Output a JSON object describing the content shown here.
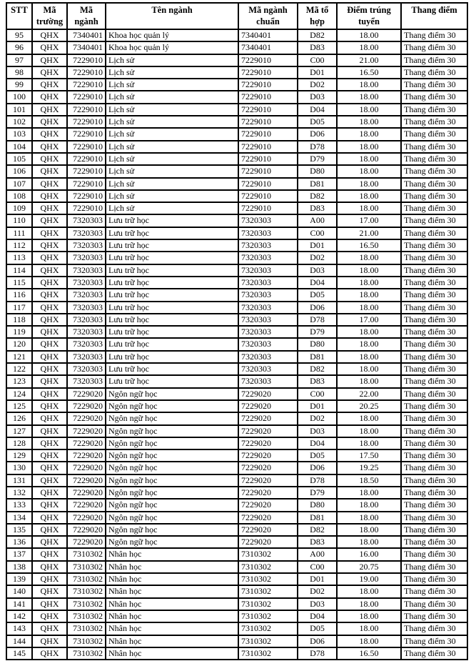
{
  "table": {
    "headers": [
      "STT",
      "Mã\ntrường",
      "Mã ngành",
      "Tên ngành",
      "Mã ngành\nchuẩn",
      "Mã tổ\nhợp",
      "Điểm trúng\ntuyển",
      "Thang điểm"
    ],
    "col_names": [
      "cell-stt",
      "cell-ma-truong",
      "cell-ma-nganh",
      "cell-ten-nganh",
      "cell-ma-nganh-chuan",
      "cell-ma-to-hop",
      "cell-diem-trung-tuyen",
      "cell-thang-diem"
    ],
    "header_names": [
      "header-stt",
      "header-ma-truong",
      "header-ma-nganh",
      "header-ten-nganh",
      "header-ma-nganh-chuan",
      "header-ma-to-hop",
      "header-diem-trung-tuyen",
      "header-thang-diem"
    ],
    "rows": [
      [
        "95",
        "QHX",
        "7340401",
        "Khoa học quản lý",
        "7340401",
        "D82",
        "18.00",
        "Thang điểm 30"
      ],
      [
        "96",
        "QHX",
        "7340401",
        "Khoa học quản lý",
        "7340401",
        "D83",
        "18.00",
        "Thang điểm 30"
      ],
      [
        "97",
        "QHX",
        "7229010",
        "Lịch sử",
        "7229010",
        "C00",
        "21.00",
        "Thang điểm 30"
      ],
      [
        "98",
        "QHX",
        "7229010",
        "Lịch sử",
        "7229010",
        "D01",
        "16.50",
        "Thang điểm 30"
      ],
      [
        "99",
        "QHX",
        "7229010",
        "Lịch sử",
        "7229010",
        "D02",
        "18.00",
        "Thang điểm 30"
      ],
      [
        "100",
        "QHX",
        "7229010",
        "Lịch sử",
        "7229010",
        "D03",
        "18.00",
        "Thang điểm 30"
      ],
      [
        "101",
        "QHX",
        "7229010",
        "Lịch sử",
        "7229010",
        "D04",
        "18.00",
        "Thang điểm 30"
      ],
      [
        "102",
        "QHX",
        "7229010",
        "Lịch sử",
        "7229010",
        "D05",
        "18.00",
        "Thang điểm 30"
      ],
      [
        "103",
        "QHX",
        "7229010",
        "Lịch sử",
        "7229010",
        "D06",
        "18.00",
        "Thang điểm 30"
      ],
      [
        "104",
        "QHX",
        "7229010",
        "Lịch sử",
        "7229010",
        "D78",
        "18.00",
        "Thang điểm 30"
      ],
      [
        "105",
        "QHX",
        "7229010",
        "Lịch sử",
        "7229010",
        "D79",
        "18.00",
        "Thang điểm 30"
      ],
      [
        "106",
        "QHX",
        "7229010",
        "Lịch sử",
        "7229010",
        "D80",
        "18.00",
        "Thang điểm 30"
      ],
      [
        "107",
        "QHX",
        "7229010",
        "Lịch sử",
        "7229010",
        "D81",
        "18.00",
        "Thang điểm 30"
      ],
      [
        "108",
        "QHX",
        "7229010",
        "Lịch sử",
        "7229010",
        "D82",
        "18.00",
        "Thang điểm 30"
      ],
      [
        "109",
        "QHX",
        "7229010",
        "Lịch sử",
        "7229010",
        "D83",
        "18.00",
        "Thang điểm 30"
      ],
      [
        "110",
        "QHX",
        "7320303",
        "Lưu trữ học",
        "7320303",
        "A00",
        "17.00",
        "Thang điểm 30"
      ],
      [
        "111",
        "QHX",
        "7320303",
        "Lưu trữ học",
        "7320303",
        "C00",
        "21.00",
        "Thang điểm 30"
      ],
      [
        "112",
        "QHX",
        "7320303",
        "Lưu trữ học",
        "7320303",
        "D01",
        "16.50",
        "Thang điểm 30"
      ],
      [
        "113",
        "QHX",
        "7320303",
        "Lưu trữ học",
        "7320303",
        "D02",
        "18.00",
        "Thang điểm 30"
      ],
      [
        "114",
        "QHX",
        "7320303",
        "Lưu trữ học",
        "7320303",
        "D03",
        "18.00",
        "Thang điểm 30"
      ],
      [
        "115",
        "QHX",
        "7320303",
        "Lưu trữ học",
        "7320303",
        "D04",
        "18.00",
        "Thang điểm 30"
      ],
      [
        "116",
        "QHX",
        "7320303",
        "Lưu trữ học",
        "7320303",
        "D05",
        "18.00",
        "Thang điểm 30"
      ],
      [
        "117",
        "QHX",
        "7320303",
        "Lưu trữ học",
        "7320303",
        "D06",
        "18.00",
        "Thang điểm 30"
      ],
      [
        "118",
        "QHX",
        "7320303",
        "Lưu trữ học",
        "7320303",
        "D78",
        "17.00",
        "Thang điểm 30"
      ],
      [
        "119",
        "QHX",
        "7320303",
        "Lưu trữ học",
        "7320303",
        "D79",
        "18.00",
        "Thang điểm 30"
      ],
      [
        "120",
        "QHX",
        "7320303",
        "Lưu trữ học",
        "7320303",
        "D80",
        "18.00",
        "Thang điểm 30"
      ],
      [
        "121",
        "QHX",
        "7320303",
        "Lưu trữ học",
        "7320303",
        "D81",
        "18.00",
        "Thang điểm 30"
      ],
      [
        "122",
        "QHX",
        "7320303",
        "Lưu trữ học",
        "7320303",
        "D82",
        "18.00",
        "Thang điểm 30"
      ],
      [
        "123",
        "QHX",
        "7320303",
        "Lưu trữ học",
        "7320303",
        "D83",
        "18.00",
        "Thang điểm 30"
      ],
      [
        "124",
        "QHX",
        "7229020",
        "Ngôn ngữ học",
        "7229020",
        "C00",
        "22.00",
        "Thang điểm 30"
      ],
      [
        "125",
        "QHX",
        "7229020",
        "Ngôn ngữ học",
        "7229020",
        "D01",
        "20.25",
        "Thang điểm 30"
      ],
      [
        "126",
        "QHX",
        "7229020",
        "Ngôn ngữ học",
        "7229020",
        "D02",
        "18.00",
        "Thang điểm 30"
      ],
      [
        "127",
        "QHX",
        "7229020",
        "Ngôn ngữ học",
        "7229020",
        "D03",
        "18.00",
        "Thang điểm 30"
      ],
      [
        "128",
        "QHX",
        "7229020",
        "Ngôn ngữ học",
        "7229020",
        "D04",
        "18.00",
        "Thang điểm 30"
      ],
      [
        "129",
        "QHX",
        "7229020",
        "Ngôn ngữ học",
        "7229020",
        "D05",
        "17.50",
        "Thang điểm 30"
      ],
      [
        "130",
        "QHX",
        "7229020",
        "Ngôn ngữ học",
        "7229020",
        "D06",
        "19.25",
        "Thang điểm 30"
      ],
      [
        "131",
        "QHX",
        "7229020",
        "Ngôn ngữ học",
        "7229020",
        "D78",
        "18.50",
        "Thang điểm 30"
      ],
      [
        "132",
        "QHX",
        "7229020",
        "Ngôn ngữ học",
        "7229020",
        "D79",
        "18.00",
        "Thang điểm 30"
      ],
      [
        "133",
        "QHX",
        "7229020",
        "Ngôn ngữ học",
        "7229020",
        "D80",
        "18.00",
        "Thang điểm 30"
      ],
      [
        "134",
        "QHX",
        "7229020",
        "Ngôn ngữ học",
        "7229020",
        "D81",
        "18.00",
        "Thang điểm 30"
      ],
      [
        "135",
        "QHX",
        "7229020",
        "Ngôn ngữ học",
        "7229020",
        "D82",
        "18.00",
        "Thang điểm 30"
      ],
      [
        "136",
        "QHX",
        "7229020",
        "Ngôn ngữ học",
        "7229020",
        "D83",
        "18.00",
        "Thang điểm 30"
      ],
      [
        "137",
        "QHX",
        "7310302",
        "Nhân học",
        "7310302",
        "A00",
        "16.00",
        "Thang điểm 30"
      ],
      [
        "138",
        "QHX",
        "7310302",
        "Nhân học",
        "7310302",
        "C00",
        "20.75",
        "Thang điểm 30"
      ],
      [
        "139",
        "QHX",
        "7310302",
        "Nhân học",
        "7310302",
        "D01",
        "19.00",
        "Thang điểm 30"
      ],
      [
        "140",
        "QHX",
        "7310302",
        "Nhân học",
        "7310302",
        "D02",
        "18.00",
        "Thang điểm 30"
      ],
      [
        "141",
        "QHX",
        "7310302",
        "Nhân học",
        "7310302",
        "D03",
        "18.00",
        "Thang điểm 30"
      ],
      [
        "142",
        "QHX",
        "7310302",
        "Nhân học",
        "7310302",
        "D04",
        "18.00",
        "Thang điểm 30"
      ],
      [
        "143",
        "QHX",
        "7310302",
        "Nhân học",
        "7310302",
        "D05",
        "18.00",
        "Thang điểm 30"
      ],
      [
        "144",
        "QHX",
        "7310302",
        "Nhân học",
        "7310302",
        "D06",
        "18.00",
        "Thang điểm 30"
      ],
      [
        "145",
        "QHX",
        "7310302",
        "Nhân học",
        "7310302",
        "D78",
        "16.50",
        "Thang điểm 30"
      ]
    ]
  }
}
